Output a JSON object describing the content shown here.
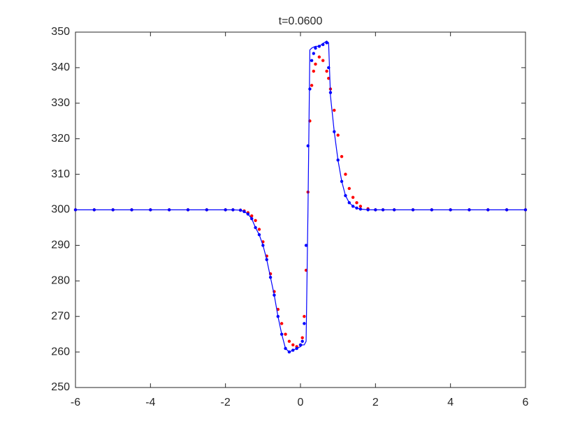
{
  "chart_data": {
    "type": "line",
    "title": "t=0.0600",
    "x": [
      -6,
      -5.5,
      -5,
      -4.5,
      -4,
      -3.5,
      -3,
      -2.5,
      -2,
      -1.8,
      -1.6,
      -1.5,
      -1.4,
      -1.3,
      -1.2,
      -1.1,
      -1.0,
      -0.9,
      -0.8,
      -0.7,
      -0.6,
      -0.5,
      -0.4,
      -0.3,
      -0.2,
      -0.1,
      0,
      0.05,
      0.1,
      0.15,
      0.2,
      0.25,
      0.3,
      0.35,
      0.4,
      0.5,
      0.6,
      0.7,
      0.75,
      0.8,
      0.9,
      1.0,
      1.1,
      1.2,
      1.3,
      1.4,
      1.5,
      1.6,
      1.8,
      2.0,
      2.2,
      2.5,
      3,
      3.5,
      4,
      4.5,
      5,
      5.5,
      6
    ],
    "series": [
      {
        "color": "#ff0000",
        "style": "dots",
        "values": [
          300,
          300,
          300,
          300,
          300,
          300,
          300,
          300,
          300,
          300,
          299.9,
          299.7,
          299.2,
          298.3,
          297,
          294.5,
          291,
          287,
          282,
          277,
          272,
          268,
          265,
          263,
          262,
          261.5,
          262,
          264,
          270,
          283,
          305,
          325,
          335,
          339,
          341,
          343,
          342,
          339,
          337,
          334,
          328,
          321,
          315,
          310,
          306,
          303.5,
          302,
          301,
          300.3,
          300,
          300,
          300,
          300,
          300,
          300,
          300,
          300,
          300,
          300
        ]
      },
      {
        "color": "#0000ff",
        "style": "dots",
        "values": [
          300,
          300,
          300,
          300,
          300,
          300,
          300,
          300,
          300,
          300,
          299.9,
          299.5,
          298.8,
          297.5,
          295,
          293,
          290,
          286,
          281,
          276,
          270,
          265,
          261,
          260,
          260.5,
          261,
          262,
          263,
          268,
          290,
          318,
          334,
          342,
          344,
          345.5,
          346,
          346.5,
          347,
          340,
          333,
          322,
          314,
          308,
          304,
          302,
          301,
          300.5,
          300.2,
          300,
          300,
          300,
          300,
          300,
          300,
          300,
          300,
          300,
          300,
          300
        ]
      },
      {
        "color": "#0000ff",
        "style": "line",
        "values": [
          300,
          300,
          300,
          300,
          300,
          300,
          300,
          300,
          300,
          300,
          299.9,
          299.5,
          298.8,
          297.5,
          295,
          293,
          290,
          286,
          281,
          276,
          270,
          265,
          261,
          260,
          260.5,
          261,
          261.5,
          262,
          262,
          263,
          300,
          345,
          345.5,
          345.8,
          346,
          346,
          346.8,
          347.5,
          347,
          332,
          322,
          314,
          308,
          304,
          302,
          301,
          300.5,
          300.2,
          300,
          300,
          300,
          300,
          300,
          300,
          300,
          300,
          300,
          300,
          300
        ]
      }
    ],
    "xlim": [
      -6,
      6
    ],
    "ylim": [
      250,
      350
    ],
    "xticks": [
      -6,
      -4,
      -2,
      0,
      2,
      4,
      6
    ],
    "yticks": [
      250,
      260,
      270,
      280,
      290,
      300,
      310,
      320,
      330,
      340,
      350
    ]
  }
}
